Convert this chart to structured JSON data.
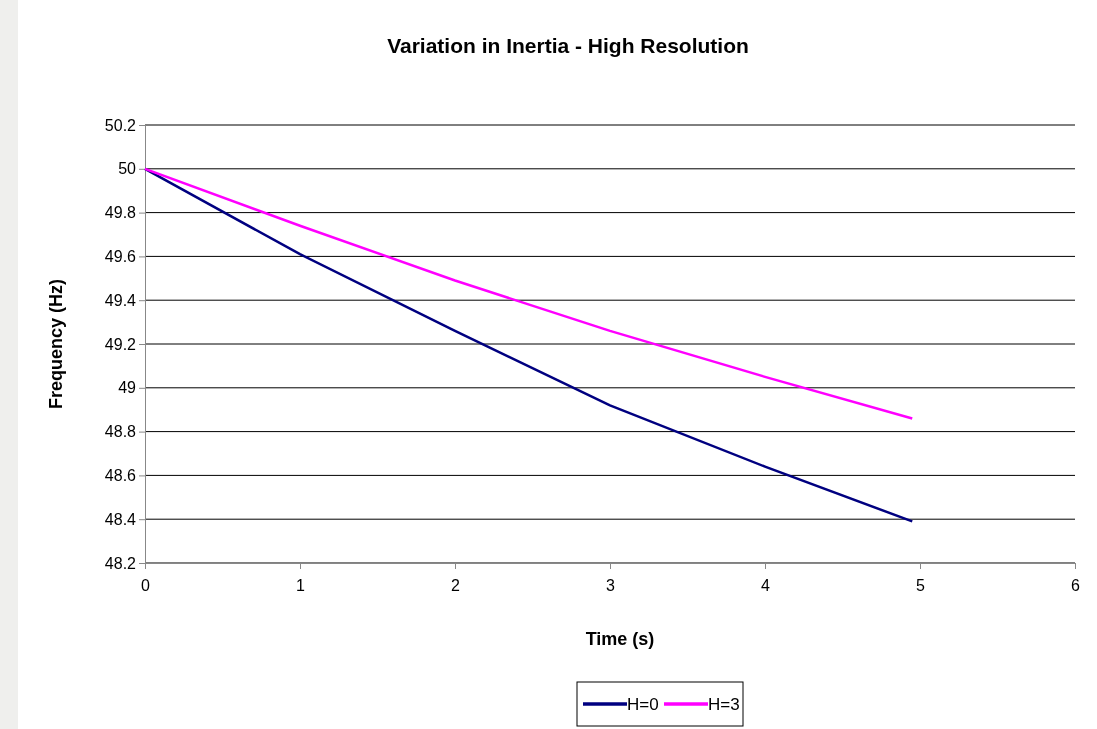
{
  "chart_data": {
    "type": "line",
    "title": "Variation in Inertia - High Resolution",
    "xlabel": "Time (s)",
    "ylabel": "Frequency (Hz)",
    "xlim": [
      0,
      6
    ],
    "xticks": [
      0,
      1,
      2,
      3,
      4,
      5,
      6
    ],
    "ylim": [
      48.2,
      50.2
    ],
    "yticks": [
      48.2,
      48.4,
      48.6,
      48.8,
      49,
      49.2,
      49.4,
      49.6,
      49.8,
      50,
      50.2
    ],
    "grid": "y",
    "legend": "bottom",
    "marker": "none",
    "line_style": "solid",
    "series": [
      {
        "name": "H=0",
        "color": "#000080",
        "x": [
          0,
          1,
          2,
          3,
          4,
          4.95
        ],
        "values": [
          50,
          49.61,
          49.26,
          48.92,
          48.64,
          48.39
        ]
      },
      {
        "name": "H=3",
        "color": "#ff00ff",
        "x": [
          0,
          1,
          2,
          3,
          4,
          4.95
        ],
        "values": [
          50,
          49.74,
          49.49,
          49.26,
          49.05,
          48.86
        ]
      }
    ]
  }
}
